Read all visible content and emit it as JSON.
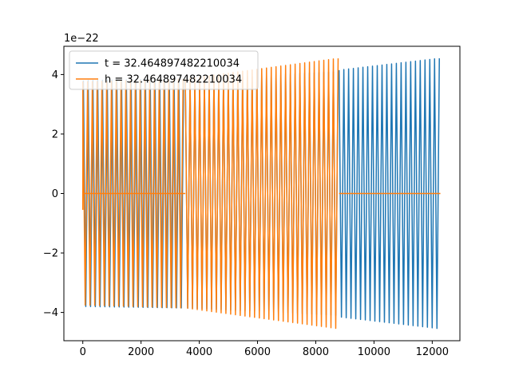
{
  "chart_data": {
    "type": "line",
    "title": "",
    "xlabel": "",
    "ylabel": "",
    "y_offset_text": "1e−22",
    "xlim": [
      -650,
      12950
    ],
    "ylim": [
      -4.95,
      4.95
    ],
    "y_scale_note": "values in units of 1e-22",
    "xticks": [
      0,
      2000,
      4000,
      6000,
      8000,
      10000,
      12000
    ],
    "xtick_labels": [
      "0",
      "2000",
      "4000",
      "6000",
      "8000",
      "10000",
      "12000"
    ],
    "yticks": [
      -4,
      -2,
      0,
      2,
      4
    ],
    "ytick_labels": [
      "−4",
      "−2",
      "0",
      "2",
      "4"
    ],
    "grid": false,
    "legend_position": "top-left",
    "series": [
      {
        "name": "t = 32.464897482210034",
        "color": "#1f77b4",
        "segments": [
          {
            "x_start": 0,
            "x_end": 20,
            "flat_zero": true
          },
          {
            "x_start": 20,
            "x_end": 3520,
            "period": 164,
            "amp_start": 3.8,
            "amp_end": 3.85
          },
          {
            "x_start": 3520,
            "x_end": 8800,
            "period": 164,
            "amp_start": 3.85,
            "amp_end": 4.1
          },
          {
            "x_start": 8800,
            "x_end": 12280,
            "period": 164,
            "amp_start": 4.15,
            "amp_end": 4.55
          }
        ]
      },
      {
        "name": "h = 32.464897482210034",
        "color": "#ff7f0e",
        "segments": [
          {
            "x_start": 0,
            "x_end": 3520,
            "period": 164,
            "amp_start": 3.75,
            "amp_end": 3.85,
            "phase_start": -0.55
          },
          {
            "x_start": 3520,
            "x_end": 8800,
            "period": 164,
            "amp_start": 3.85,
            "amp_end": 4.55
          },
          {
            "x_start": 8800,
            "x_end": 12280,
            "flat_zero": true
          }
        ],
        "flat_zero_overlay": [
          0,
          3520
        ]
      }
    ]
  }
}
